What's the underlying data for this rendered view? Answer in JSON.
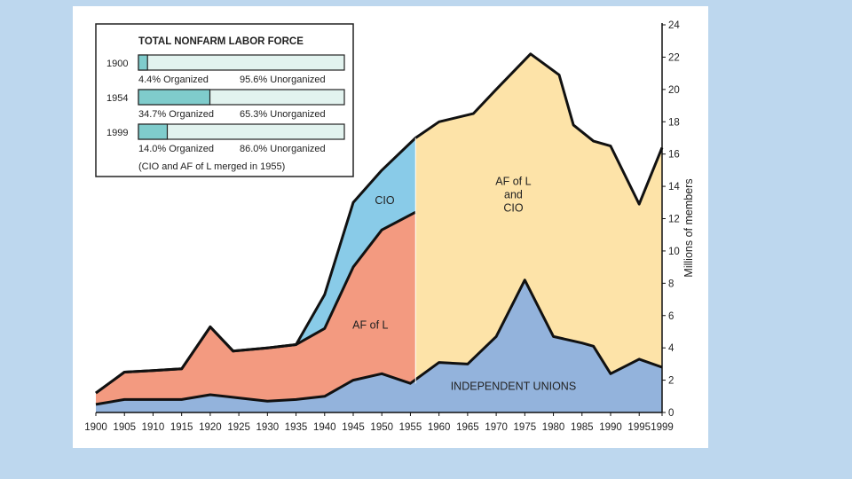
{
  "chart_data": {
    "type": "area",
    "ylabel": "Millions of members",
    "ylim": [
      0,
      24
    ],
    "y_ticks": [
      0,
      2,
      4,
      6,
      8,
      10,
      12,
      14,
      16,
      18,
      20,
      22,
      24
    ],
    "x_ticks": [
      1900,
      1905,
      1910,
      1915,
      1920,
      1925,
      1930,
      1935,
      1940,
      1945,
      1950,
      1955,
      1960,
      1965,
      1970,
      1975,
      1980,
      1985,
      1990,
      1995,
      1999
    ],
    "stack_type": "stacked_boundaries",
    "series": [
      {
        "name": "INDEPENDENT UNIONS",
        "label_lines": [
          "INDEPENDENT UNIONS"
        ],
        "color": "#93b3dc",
        "label_at": [
          1973,
          1.4
        ],
        "points": [
          [
            1900,
            0.5
          ],
          [
            1905,
            0.8
          ],
          [
            1910,
            0.8
          ],
          [
            1915,
            0.8
          ],
          [
            1920,
            1.1
          ],
          [
            1925,
            0.9
          ],
          [
            1930,
            0.7
          ],
          [
            1935,
            0.8
          ],
          [
            1940,
            1.0
          ],
          [
            1945,
            2.0
          ],
          [
            1950,
            2.4
          ],
          [
            1955,
            1.8
          ],
          [
            1960,
            3.1
          ],
          [
            1965,
            3.0
          ],
          [
            1970,
            4.7
          ],
          [
            1975,
            8.2
          ],
          [
            1980,
            4.7
          ],
          [
            1985,
            4.3
          ],
          [
            1987,
            4.1
          ],
          [
            1990,
            2.4
          ],
          [
            1995,
            3.3
          ],
          [
            1999,
            2.8
          ]
        ]
      },
      {
        "name": "AF of L",
        "label_lines": [
          "AF of L"
        ],
        "color": "#f39a80",
        "label_at": [
          1948,
          5.2
        ],
        "points": [
          [
            1900,
            1.2
          ],
          [
            1905,
            2.5
          ],
          [
            1910,
            2.6
          ],
          [
            1915,
            2.7
          ],
          [
            1920,
            5.3
          ],
          [
            1924,
            3.8
          ],
          [
            1930,
            4.0
          ],
          [
            1935,
            4.2
          ],
          [
            1940,
            5.2
          ],
          [
            1945,
            9.0
          ],
          [
            1950,
            11.3
          ],
          [
            1955.9,
            12.4
          ]
        ]
      },
      {
        "name": "CIO",
        "label_lines": [
          "CIO"
        ],
        "color": "#89cbe8",
        "label_at": [
          1950.5,
          12.9
        ],
        "points": [
          [
            1935,
            4.2
          ],
          [
            1940,
            7.3
          ],
          [
            1945,
            13.0
          ],
          [
            1950,
            15.0
          ],
          [
            1955.9,
            17.0
          ]
        ]
      },
      {
        "name": "AF of L and CIO",
        "label_lines": [
          "AF of L",
          "and",
          "CIO"
        ],
        "color": "#fde3a8",
        "label_at": [
          1973,
          14.1
        ],
        "points": [
          [
            1955.9,
            17.0
          ],
          [
            1960,
            18.0
          ],
          [
            1966,
            18.5
          ],
          [
            1970,
            20.0
          ],
          [
            1976,
            22.2
          ],
          [
            1981,
            20.9
          ],
          [
            1983.5,
            17.8
          ],
          [
            1987,
            16.8
          ],
          [
            1990,
            16.5
          ],
          [
            1995,
            12.9
          ],
          [
            1999,
            16.4
          ]
        ]
      }
    ],
    "inset": {
      "title": "TOTAL NONFARM LABOR FORCE",
      "bar_fill_color": "#7fcccc",
      "bar_empty_color": "#e2f3ef",
      "rows": [
        {
          "year": "1900",
          "organized_pct": 4.4,
          "organized_label": "4.4% Organized",
          "unorganized_label": "95.6% Unorganized"
        },
        {
          "year": "1954",
          "organized_pct": 34.7,
          "organized_label": "34.7% Organized",
          "unorganized_label": "65.3% Unorganized"
        },
        {
          "year": "1999",
          "organized_pct": 14.0,
          "organized_label": "14.0% Organized",
          "unorganized_label": "86.0% Unorganized"
        }
      ],
      "footnote": "(CIO and AF of L merged in 1955)"
    }
  }
}
